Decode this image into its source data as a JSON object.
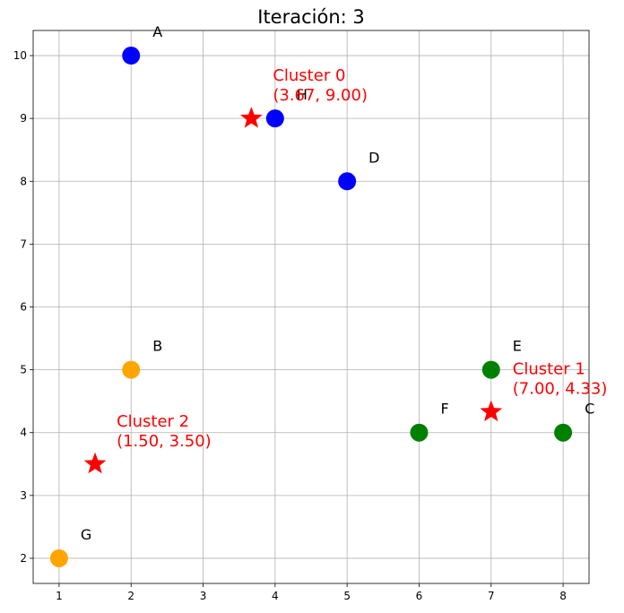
{
  "chart_data": {
    "type": "scatter",
    "title": "Iteración: 3",
    "xlabel": "",
    "ylabel": "",
    "xlim": [
      0.64,
      8.36
    ],
    "ylim": [
      1.6,
      10.4
    ],
    "xticks": [
      1,
      2,
      3,
      4,
      5,
      6,
      7,
      8
    ],
    "yticks": [
      2,
      3,
      4,
      5,
      6,
      7,
      8,
      9,
      10
    ],
    "grid": true,
    "legend": "none",
    "colors": {
      "cluster_0": "#0000ff",
      "cluster_1": "#008000",
      "cluster_2": "#ffa500",
      "centroid": "#ff0000"
    },
    "points": [
      {
        "label": "A",
        "x": 2,
        "y": 10,
        "cluster": 0
      },
      {
        "label": "B",
        "x": 2,
        "y": 5,
        "cluster": 2
      },
      {
        "label": "C",
        "x": 8,
        "y": 4,
        "cluster": 1
      },
      {
        "label": "D",
        "x": 5,
        "y": 8,
        "cluster": 0
      },
      {
        "label": "E",
        "x": 7,
        "y": 5,
        "cluster": 1
      },
      {
        "label": "F",
        "x": 6,
        "y": 4,
        "cluster": 1
      },
      {
        "label": "G",
        "x": 1,
        "y": 2,
        "cluster": 2
      },
      {
        "label": "H",
        "x": 4,
        "y": 9,
        "cluster": 0
      }
    ],
    "centroids": [
      {
        "name": "Cluster 0",
        "coords": "(3.67, 9.00)",
        "x": 3.67,
        "y": 9.0
      },
      {
        "name": "Cluster 1",
        "coords": "(7.00, 4.33)",
        "x": 7.0,
        "y": 4.33
      },
      {
        "name": "Cluster 2",
        "coords": "(1.50, 3.50)",
        "x": 1.5,
        "y": 3.5
      }
    ]
  }
}
